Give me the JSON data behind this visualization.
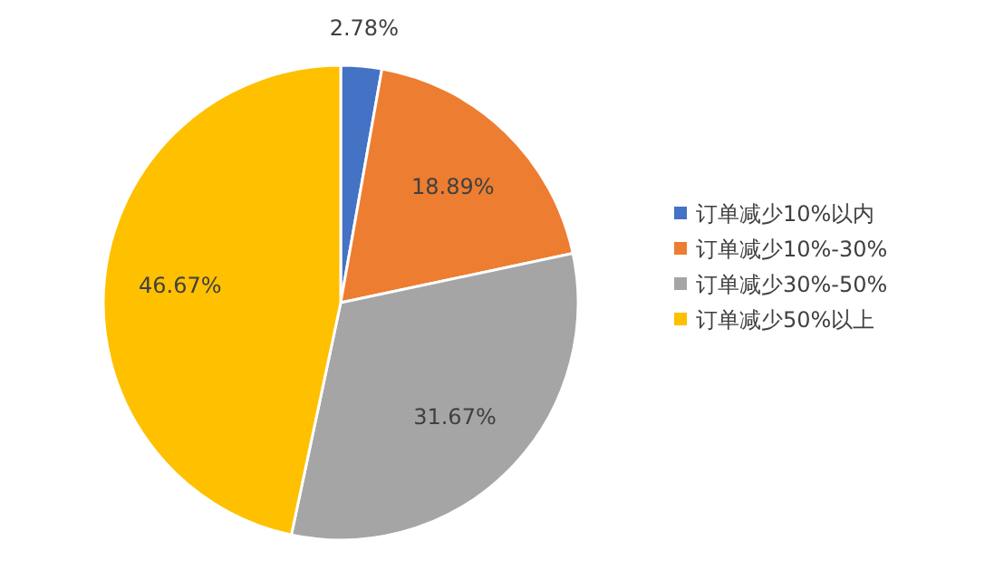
{
  "chart_data": {
    "type": "pie",
    "categories": [
      "订单减少10%以内",
      "订单减少10%-30%",
      "订单减少30%-50%",
      "订单减少50%以上"
    ],
    "values": [
      2.78,
      18.89,
      31.67,
      46.67
    ],
    "colors": [
      "#4472c4",
      "#ed7d31",
      "#a5a5a5",
      "#ffc000"
    ],
    "value_labels": [
      "2.78%",
      "18.89%",
      "31.67%",
      "46.67%"
    ],
    "legend": "right"
  }
}
